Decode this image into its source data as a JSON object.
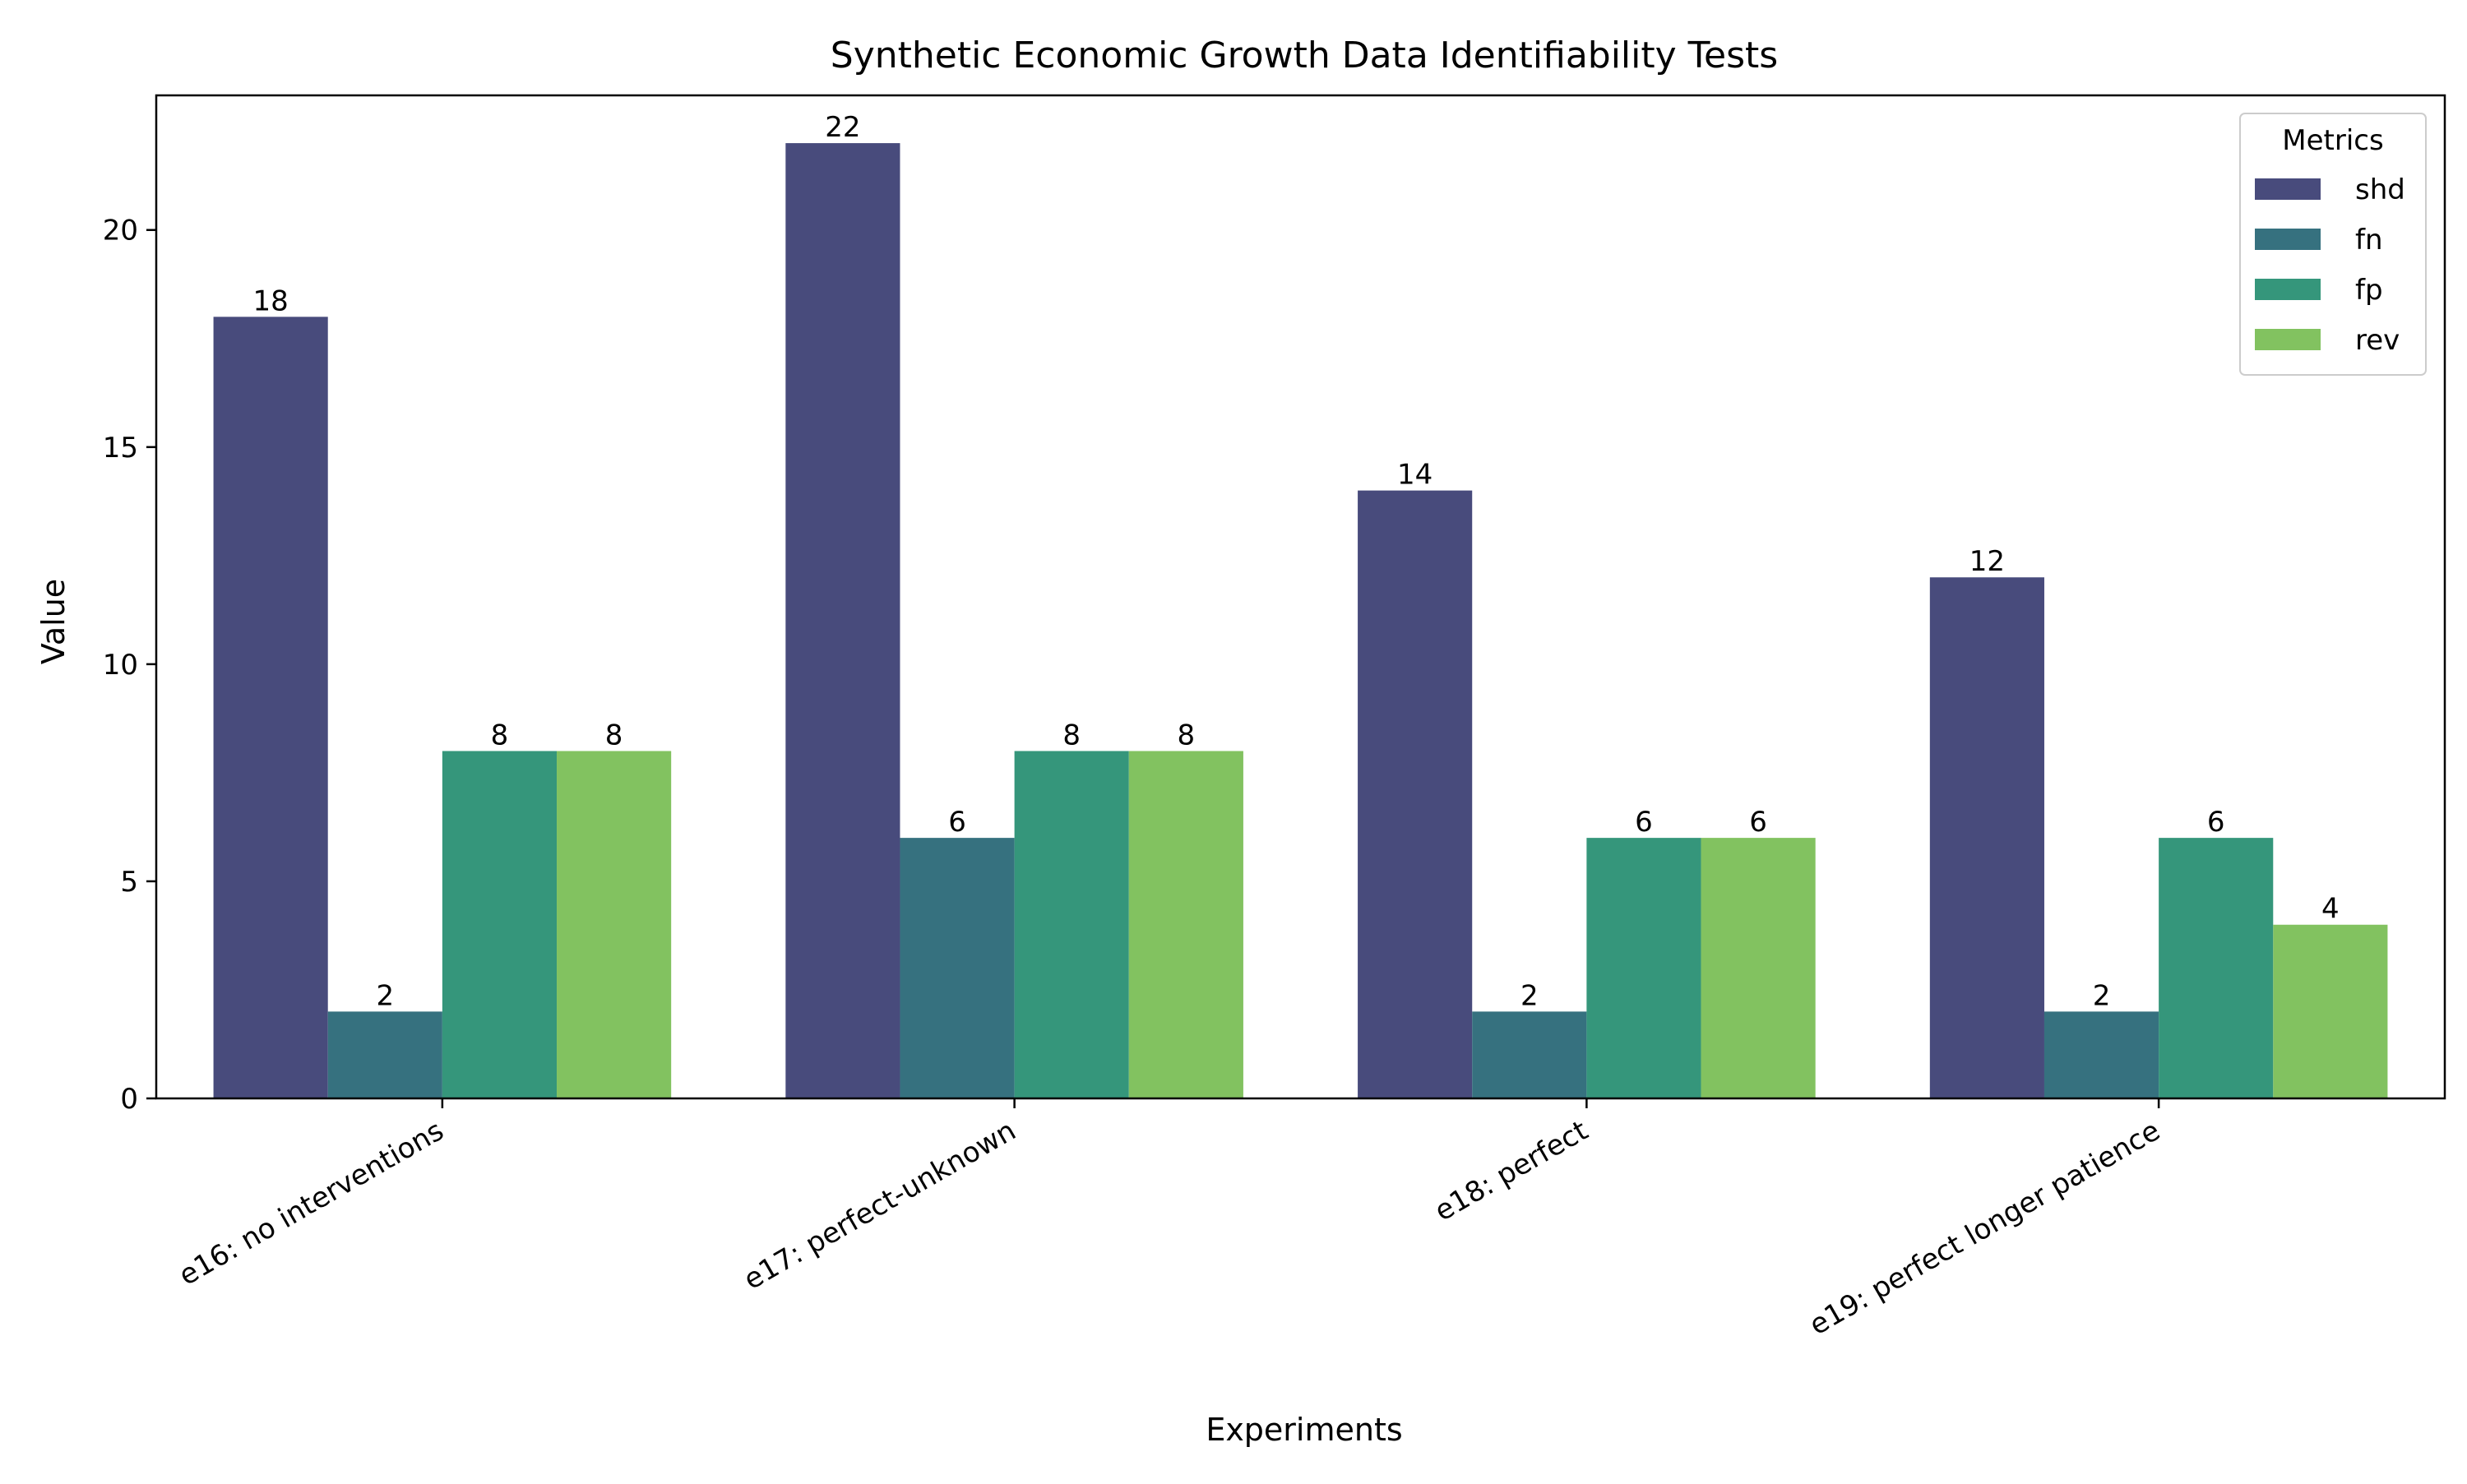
{
  "chart_data": {
    "type": "bar",
    "title": "Synthetic Economic Growth Data Identifiability Tests",
    "xlabel": "Experiments",
    "ylabel": "Value",
    "ylim": [
      0,
      23.1
    ],
    "yticks": [
      0,
      5,
      10,
      15,
      20
    ],
    "grid": false,
    "legend": {
      "title": "Metrics",
      "placement": "top-right"
    },
    "categories": [
      "e16: no interventions",
      "e17: perfect-unknown",
      "e18: perfect",
      "e19: perfect longer patience"
    ],
    "series": [
      {
        "name": "shd",
        "color": "#484b7c",
        "values": [
          18,
          22,
          14,
          12
        ]
      },
      {
        "name": "fn",
        "color": "#36717f",
        "values": [
          2,
          6,
          2,
          2
        ]
      },
      {
        "name": "fp",
        "color": "#35967b",
        "values": [
          8,
          8,
          6,
          6
        ]
      },
      {
        "name": "rev",
        "color": "#82c260",
        "values": [
          8,
          8,
          6,
          4
        ]
      }
    ]
  }
}
